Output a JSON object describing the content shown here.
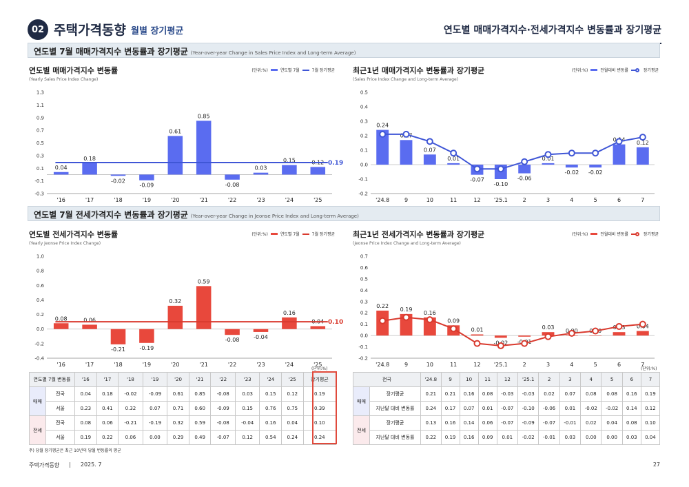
{
  "header": {
    "num": "02",
    "title": "주택가격동향",
    "subtitle": "월별 장기평균",
    "page_heading": "연도별 매매가격지수·전세가격지수 변동률과 장기평균"
  },
  "section1": {
    "title": "연도별 7월 매매가격지수 변동률과 장기평균",
    "en": "(Year-over-year Change in Sales Price Index and Long-term Average)"
  },
  "section2": {
    "title": "연도별 7월 전세가격지수 변동률과 장기평균",
    "en": "(Year-over-year Change in Jeonse Price Index and Long-term Average)"
  },
  "colors": {
    "sales": "#5a6cf0",
    "sales_line": "#3f56d6",
    "jeonse": "#e8483c",
    "jeonse_line": "#d93a2e"
  },
  "chart_data": [
    {
      "id": "c1",
      "type": "bar",
      "title": "연도별 매매가격지수 변동률",
      "subtitle": "(Yearly Sales Price Index Change)",
      "unit": "(단위:%)",
      "legend": [
        "연도별 7월",
        "7월 장기평균"
      ],
      "categories": [
        "'16",
        "'17",
        "'18",
        "'19",
        "'20",
        "'21",
        "'22",
        "'23",
        "'24",
        "'25"
      ],
      "values": [
        0.04,
        0.18,
        -0.02,
        -0.09,
        0.61,
        0.85,
        -0.08,
        0.03,
        0.15,
        0.12
      ],
      "avg": 0.19,
      "avg_label": "0.19",
      "ylim": [
        -0.3,
        1.3
      ],
      "yticks": [
        -0.3,
        -0.1,
        0.1,
        0.3,
        0.5,
        0.7,
        0.9,
        1.1,
        1.3
      ],
      "ylabels": [
        "-0.3",
        "-0.1",
        "0.1",
        "0.3",
        "0.5",
        "0.7",
        "0.9",
        "1.1",
        "1.3"
      ]
    },
    {
      "id": "c2",
      "type": "bar+line",
      "title": "최근1년 매매가격지수 변동률과 장기평균",
      "subtitle": "(Sales Price Index Change and Long-term Average)",
      "unit": "(단위:%)",
      "legend": [
        "전월대비 변동률",
        "장기평균"
      ],
      "categories": [
        "'24.8",
        "9",
        "10",
        "11",
        "12",
        "'25.1",
        "2",
        "3",
        "4",
        "5",
        "6",
        "7"
      ],
      "values": [
        0.24,
        0.17,
        0.07,
        0.01,
        -0.07,
        -0.1,
        -0.06,
        0.01,
        -0.02,
        -0.02,
        0.14,
        0.12
      ],
      "line": [
        0.21,
        0.21,
        0.16,
        0.08,
        -0.03,
        -0.03,
        0.02,
        0.07,
        0.08,
        0.08,
        0.16,
        0.19
      ],
      "ylim": [
        -0.2,
        0.5
      ],
      "yticks": [
        -0.2,
        -0.1,
        0.0,
        0.1,
        0.2,
        0.3,
        0.4,
        0.5
      ],
      "ylabels": [
        "-0.2",
        "-0.1",
        "0.0",
        "0.1",
        "0.2",
        "0.3",
        "0.4",
        "0.5"
      ]
    },
    {
      "id": "c3",
      "type": "bar",
      "title": "연도별 전세가격지수 변동률",
      "subtitle": "(Yearly Jeonse Price Index Change)",
      "unit": "(단위:%)",
      "legend": [
        "연도별 7월",
        "7월 장기평균"
      ],
      "categories": [
        "'16",
        "'17",
        "'18",
        "'19",
        "'20",
        "'21",
        "'22",
        "'23",
        "'24",
        "'25"
      ],
      "values": [
        0.08,
        0.06,
        -0.21,
        -0.19,
        0.32,
        0.59,
        -0.08,
        -0.04,
        0.16,
        0.04
      ],
      "avg": 0.1,
      "avg_label": "0.10",
      "ylim": [
        -0.4,
        1.0
      ],
      "yticks": [
        -0.4,
        -0.2,
        0.0,
        0.2,
        0.4,
        0.6,
        0.8,
        1.0
      ],
      "ylabels": [
        "-0.4",
        "-0.2",
        "0.0",
        "0.2",
        "0.4",
        "0.6",
        "0.8",
        "1.0"
      ]
    },
    {
      "id": "c4",
      "type": "bar+line",
      "title": "최근1년 전세가격지수 변동률과 장기평균",
      "subtitle": "(Jeonse Price Index Change and Long-term Average)",
      "unit": "(단위:%)",
      "legend": [
        "전월대비 변동률",
        "장기평균"
      ],
      "categories": [
        "'24.8",
        "9",
        "10",
        "11",
        "12",
        "'25.1",
        "2",
        "3",
        "4",
        "5",
        "6",
        "7"
      ],
      "values": [
        0.22,
        0.19,
        0.16,
        0.09,
        0.01,
        -0.02,
        -0.01,
        0.03,
        0.0,
        0.0,
        0.03,
        0.04
      ],
      "line": [
        0.13,
        0.16,
        0.14,
        0.06,
        -0.07,
        -0.09,
        -0.07,
        -0.01,
        0.02,
        0.04,
        0.08,
        0.1
      ],
      "ylim": [
        -0.2,
        0.7
      ],
      "yticks": [
        -0.2,
        -0.1,
        0.0,
        0.1,
        0.2,
        0.3,
        0.4,
        0.5,
        0.6,
        0.7
      ],
      "ylabels": [
        "-0.2",
        "-0.1",
        "0.0",
        "0.1",
        "0.2",
        "0.3",
        "0.4",
        "0.5",
        "0.6",
        "0.7"
      ]
    }
  ],
  "table_left": {
    "header": [
      "연도별 7월 변동률",
      "",
      "'16",
      "'17",
      "'18",
      "'19",
      "'20",
      "'21",
      "'22",
      "'23",
      "'24",
      "'25",
      "장기평균"
    ],
    "groups": [
      {
        "label": "매매",
        "rows": [
          {
            "name": "전국",
            "cells": [
              "0.04",
              "0.18",
              "-0.02",
              "-0.09",
              "0.61",
              "0.85",
              "-0.08",
              "0.03",
              "0.15",
              "0.12",
              "0.19"
            ]
          },
          {
            "name": "서울",
            "cells": [
              "0.23",
              "0.41",
              "0.32",
              "0.07",
              "0.71",
              "0.60",
              "-0.09",
              "0.15",
              "0.76",
              "0.75",
              "0.39"
            ]
          }
        ]
      },
      {
        "label": "전세",
        "rows": [
          {
            "name": "전국",
            "cells": [
              "0.08",
              "0.06",
              "-0.21",
              "-0.19",
              "0.32",
              "0.59",
              "-0.08",
              "-0.04",
              "0.16",
              "0.04",
              "0.10"
            ]
          },
          {
            "name": "서울",
            "cells": [
              "0.19",
              "0.22",
              "0.06",
              "0.00",
              "0.29",
              "0.49",
              "-0.07",
              "0.12",
              "0.54",
              "0.24",
              "0.24"
            ]
          }
        ]
      }
    ]
  },
  "table_right": {
    "header": [
      "전국",
      "",
      "'24.8",
      "9",
      "10",
      "11",
      "12",
      "'25.1",
      "2",
      "3",
      "4",
      "5",
      "6",
      "7"
    ],
    "groups": [
      {
        "label": "매매",
        "rows": [
          {
            "name": "장기평균",
            "cells": [
              "0.21",
              "0.21",
              "0.16",
              "0.08",
              "-0.03",
              "-0.03",
              "0.02",
              "0.07",
              "0.08",
              "0.08",
              "0.16",
              "0.19"
            ]
          },
          {
            "name": "지난달 대비 변동률",
            "cells": [
              "0.24",
              "0.17",
              "0.07",
              "0.01",
              "-0.07",
              "-0.10",
              "-0.06",
              "0.01",
              "-0.02",
              "-0.02",
              "0.14",
              "0.12"
            ]
          }
        ]
      },
      {
        "label": "전세",
        "rows": [
          {
            "name": "장기평균",
            "cells": [
              "0.13",
              "0.16",
              "0.14",
              "0.06",
              "-0.07",
              "-0.09",
              "-0.07",
              "-0.01",
              "0.02",
              "0.04",
              "0.08",
              "0.10"
            ]
          },
          {
            "name": "지난달 대비 변동률",
            "cells": [
              "0.22",
              "0.19",
              "0.16",
              "0.09",
              "0.01",
              "-0.02",
              "-0.01",
              "0.03",
              "0.00",
              "0.00",
              "0.03",
              "0.04"
            ]
          }
        ]
      }
    ]
  },
  "unit_note": "(단위:%)",
  "note": "주) 당월 장기평균은 최근 10년의 당월 변동률의 평균",
  "footer": {
    "name": "주택가격동향",
    "sep": "|",
    "date": "2025. 7",
    "page": "27"
  }
}
